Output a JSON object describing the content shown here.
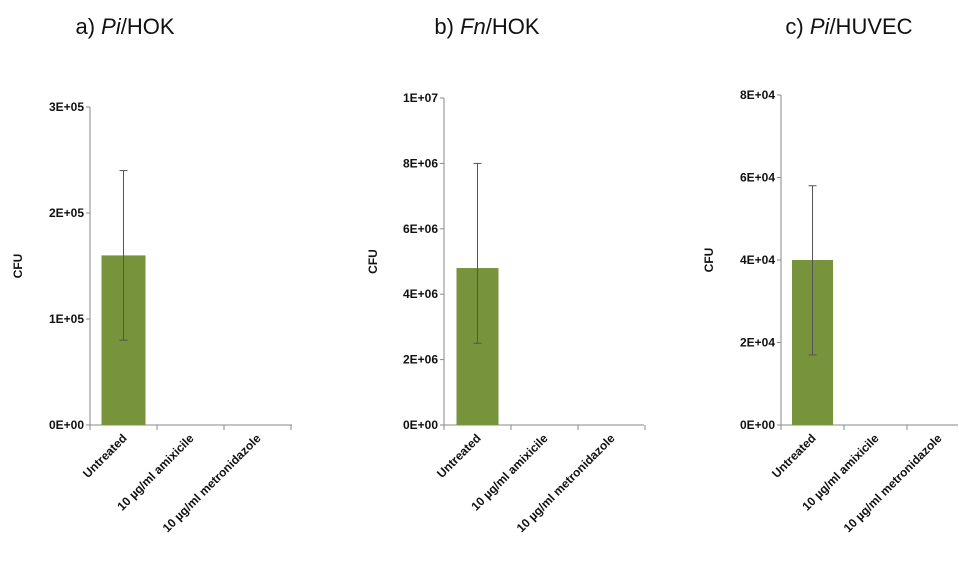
{
  "chart_data": [
    {
      "type": "bar",
      "panel": "a)",
      "title_italic": "Pi",
      "title_rest": "/HOK",
      "ylabel": "CFU",
      "categories": [
        "Untreated",
        "10 µg/ml amixicile",
        "10 µg/ml metronidazole"
      ],
      "values": [
        160000,
        0,
        0
      ],
      "error": [
        [
          80000,
          240000
        ],
        null,
        null
      ],
      "ylim": [
        0,
        300000
      ],
      "yticks": [
        0,
        100000,
        200000,
        300000
      ],
      "ytick_labels": [
        "0E+00",
        "1E+05",
        "2E+05",
        "3E+05"
      ],
      "bar_color": "#77933c",
      "grid": false
    },
    {
      "type": "bar",
      "panel": "b)",
      "title_italic": "Fn",
      "title_rest": "/HOK",
      "ylabel": "CFU",
      "categories": [
        "Untreated",
        "10 µg/ml amixicile",
        "10 µg/ml metronidazole"
      ],
      "values": [
        4800000,
        0,
        0
      ],
      "error": [
        [
          2500000,
          8000000
        ],
        null,
        null
      ],
      "ylim": [
        0,
        10000000
      ],
      "yticks": [
        0,
        2000000,
        4000000,
        6000000,
        8000000,
        10000000
      ],
      "ytick_labels": [
        "0E+00",
        "2E+06",
        "4E+06",
        "6E+06",
        "8E+06",
        "1E+07"
      ],
      "bar_color": "#77933c",
      "grid": false
    },
    {
      "type": "bar",
      "panel": "c)",
      "title_italic": "Pi",
      "title_rest": "/HUVEC",
      "ylabel": "CFU",
      "categories": [
        "Untreated",
        "10 µg/ml amixicile",
        "10 µg/ml metronidazole"
      ],
      "values": [
        40000,
        0,
        0
      ],
      "error": [
        [
          17000,
          58000
        ],
        null,
        null
      ],
      "ylim": [
        0,
        80000
      ],
      "yticks": [
        0,
        20000,
        40000,
        60000,
        80000
      ],
      "ytick_labels": [
        "0E+00",
        "2E+04",
        "4E+04",
        "6E+04",
        "8E+04"
      ],
      "bar_color": "#77933c",
      "grid": false
    }
  ]
}
